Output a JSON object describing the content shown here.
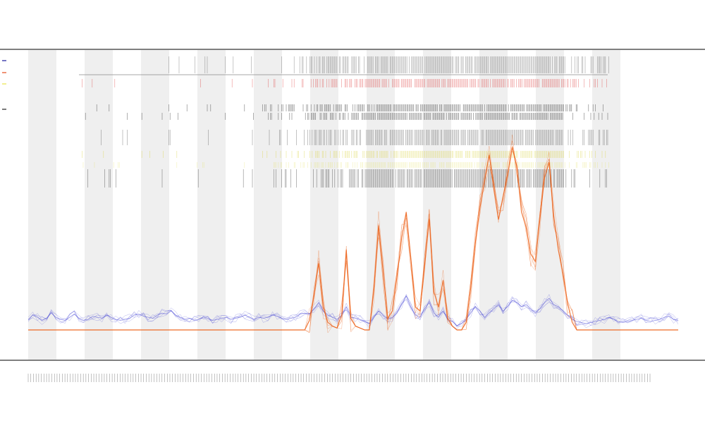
{
  "chart_data": {
    "type": "line",
    "title": "",
    "subtitle_lines": [
      "",
      ""
    ],
    "xlabel": "",
    "ylabel": "",
    "grid": false,
    "legend_position": "top-left",
    "legend": [
      {
        "label": "",
        "color": "#1a1a9c",
        "symbol": "line"
      },
      {
        "label": "",
        "color": "#e64a19",
        "symbol": "line"
      },
      {
        "label": "",
        "color": "#e8e44a",
        "symbol": "line"
      },
      {
        "label": "",
        "color": "#222222",
        "symbol": "bar"
      }
    ],
    "x_tick_count": 238,
    "shaded_band_count": 11,
    "series": [
      {
        "id": "baseline-signal",
        "color": "#2a2acf",
        "values": [
          0.1,
          0.14,
          0.12,
          0.09,
          0.11,
          0.16,
          0.12,
          0.1,
          0.09,
          0.12,
          0.15,
          0.11,
          0.09,
          0.1,
          0.13,
          0.12,
          0.11,
          0.14,
          0.12,
          0.1,
          0.09,
          0.1,
          0.11,
          0.14,
          0.15,
          0.13,
          0.12,
          0.11,
          0.14,
          0.16,
          0.15,
          0.18,
          0.14,
          0.12,
          0.1,
          0.11,
          0.09,
          0.1,
          0.12,
          0.11,
          0.09,
          0.1,
          0.11,
          0.12,
          0.1,
          0.11,
          0.12,
          0.14,
          0.12,
          0.1,
          0.12,
          0.11,
          0.12,
          0.14,
          0.13,
          0.11,
          0.1,
          0.11,
          0.12,
          0.15,
          0.16,
          0.15,
          0.2,
          0.26,
          0.18,
          0.14,
          0.12,
          0.1,
          0.14,
          0.22,
          0.12,
          0.11,
          0.1,
          0.08,
          0.06,
          0.12,
          0.18,
          0.14,
          0.1,
          0.12,
          0.16,
          0.24,
          0.32,
          0.22,
          0.14,
          0.12,
          0.2,
          0.26,
          0.16,
          0.12,
          0.18,
          0.1,
          0.08,
          0.04,
          0.06,
          0.1,
          0.16,
          0.22,
          0.18,
          0.12,
          0.16,
          0.2,
          0.24,
          0.18,
          0.22,
          0.28,
          0.26,
          0.22,
          0.24,
          0.2,
          0.16,
          0.2,
          0.26,
          0.3,
          0.24,
          0.22,
          0.18,
          0.14,
          0.1,
          0.08,
          0.07,
          0.06,
          0.07,
          0.08,
          0.09,
          0.1,
          0.12,
          0.1,
          0.08,
          0.07,
          0.08,
          0.09,
          0.1,
          0.11,
          0.09,
          0.08,
          0.09,
          0.1,
          0.12,
          0.13,
          0.1,
          0.09
        ]
      },
      {
        "id": "peak-signal",
        "color": "#ec5d12",
        "values": [
          0,
          0,
          0,
          0,
          0,
          0,
          0,
          0,
          0,
          0,
          0,
          0,
          0,
          0,
          0,
          0,
          0,
          0,
          0,
          0,
          0,
          0,
          0,
          0,
          0,
          0,
          0,
          0,
          0,
          0,
          0,
          0,
          0,
          0,
          0,
          0,
          0,
          0,
          0,
          0,
          0,
          0,
          0,
          0,
          0,
          0,
          0,
          0,
          0,
          0,
          0,
          0,
          0,
          0,
          0,
          0,
          0,
          0,
          0,
          0,
          0,
          0.05,
          0.18,
          0.35,
          0.12,
          0.04,
          0.02,
          0.01,
          0.08,
          0.42,
          0.06,
          0.02,
          0.01,
          0,
          0,
          0.22,
          0.55,
          0.3,
          0.06,
          0.1,
          0.28,
          0.48,
          0.62,
          0.38,
          0.12,
          0.1,
          0.34,
          0.58,
          0.2,
          0.12,
          0.26,
          0.06,
          0.02,
          0,
          0,
          0.04,
          0.22,
          0.46,
          0.64,
          0.78,
          0.92,
          0.74,
          0.58,
          0.7,
          0.82,
          0.96,
          0.86,
          0.62,
          0.54,
          0.4,
          0.36,
          0.58,
          0.8,
          0.88,
          0.6,
          0.42,
          0.3,
          0.14,
          0.04,
          0,
          0,
          0,
          0,
          0,
          0,
          0,
          0,
          0,
          0,
          0,
          0,
          0,
          0,
          0,
          0,
          0,
          0,
          0,
          0,
          0,
          0,
          0
        ]
      }
    ]
  }
}
